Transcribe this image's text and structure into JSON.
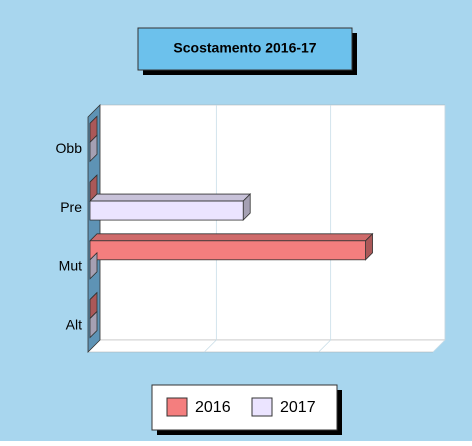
{
  "chart_data": {
    "type": "bar3d",
    "orientation": "horizontal",
    "title": "Scostamento 2016-17",
    "categories": [
      "Obb",
      "Pre",
      "Mut",
      "Alt"
    ],
    "series": [
      {
        "name": "2016",
        "color": "#f47e7e",
        "values": [
          0,
          0,
          2.41,
          0
        ]
      },
      {
        "name": "2017",
        "color": "#ebe4ff",
        "values": [
          0,
          1.34,
          0,
          0
        ]
      }
    ],
    "xlim": [
      0,
      3
    ],
    "xticks": [
      0,
      1,
      2,
      3
    ],
    "grid": true,
    "legend": "bottom"
  }
}
